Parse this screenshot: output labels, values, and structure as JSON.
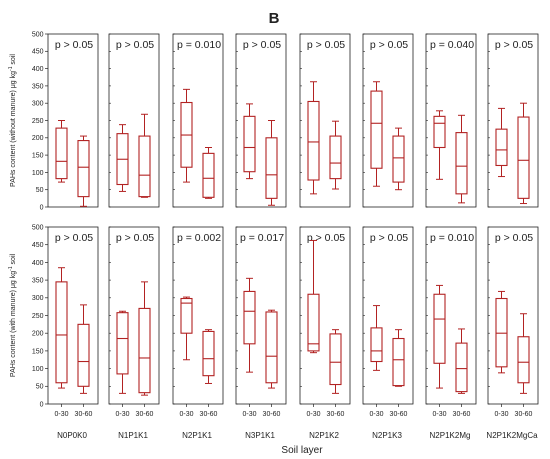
{
  "chart_data": {
    "type": "boxplot",
    "figure_label": "B",
    "xlabel": "Soil layer",
    "categories": [
      "0-30",
      "30-60"
    ],
    "treatments": [
      "N0P0K0",
      "N1P1K1",
      "N2P1K1",
      "N3P1K1",
      "N2P1K2",
      "N2P1K3",
      "N2P1K2Mg",
      "N2P1K2MgCa"
    ],
    "ylim": [
      0,
      500
    ],
    "yticks": [
      "0",
      "50",
      "100",
      "150",
      "200",
      "250",
      "300",
      "350",
      "400",
      "450",
      "500"
    ],
    "box_color": "#b22222",
    "rows": [
      {
        "ylabel_main": "PAHs content (without manure)",
        "ylabel_unit_base": "μg kg",
        "ylabel_unit_exp": "-1",
        "ylabel_unit_end": " soil",
        "panels": [
          {
            "treatment": "N0P0K0",
            "p_value": "p > 0.05",
            "boxes": [
              {
                "min": 72,
                "q1": 82,
                "median": 132,
                "q3": 228,
                "max": 250
              },
              {
                "min": 2,
                "q1": 30,
                "median": 115,
                "q3": 192,
                "max": 205
              }
            ]
          },
          {
            "treatment": "N1P1K1",
            "p_value": "p > 0.05",
            "boxes": [
              {
                "min": 45,
                "q1": 65,
                "median": 138,
                "q3": 212,
                "max": 238
              },
              {
                "min": 28,
                "q1": 30,
                "median": 92,
                "q3": 205,
                "max": 268
              }
            ]
          },
          {
            "treatment": "N2P1K1",
            "p_value": "p = 0.010",
            "boxes": [
              {
                "min": 72,
                "q1": 115,
                "median": 208,
                "q3": 302,
                "max": 340
              },
              {
                "min": 25,
                "q1": 28,
                "median": 83,
                "q3": 155,
                "max": 172
              }
            ]
          },
          {
            "treatment": "N3P1K1",
            "p_value": "p > 0.05",
            "boxes": [
              {
                "min": 82,
                "q1": 102,
                "median": 172,
                "q3": 262,
                "max": 298
              },
              {
                "min": 5,
                "q1": 25,
                "median": 93,
                "q3": 200,
                "max": 250
              }
            ]
          },
          {
            "treatment": "N2P1K2",
            "p_value": "p > 0.05",
            "boxes": [
              {
                "min": 38,
                "q1": 78,
                "median": 188,
                "q3": 305,
                "max": 362
              },
              {
                "min": 52,
                "q1": 82,
                "median": 127,
                "q3": 205,
                "max": 248
              }
            ]
          },
          {
            "treatment": "N2P1K3",
            "p_value": "p > 0.05",
            "boxes": [
              {
                "min": 60,
                "q1": 112,
                "median": 242,
                "q3": 335,
                "max": 362
              },
              {
                "min": 50,
                "q1": 72,
                "median": 142,
                "q3": 205,
                "max": 228
              }
            ]
          },
          {
            "treatment": "N2P1K2Mg",
            "p_value": "p = 0.040",
            "boxes": [
              {
                "min": 80,
                "q1": 172,
                "median": 242,
                "q3": 262,
                "max": 278
              },
              {
                "min": 12,
                "q1": 38,
                "median": 118,
                "q3": 215,
                "max": 265
              }
            ]
          },
          {
            "treatment": "N2P1K2MgCa",
            "p_value": "p > 0.05",
            "boxes": [
              {
                "min": 88,
                "q1": 120,
                "median": 165,
                "q3": 225,
                "max": 285
              },
              {
                "min": 10,
                "q1": 25,
                "median": 135,
                "q3": 260,
                "max": 300
              }
            ]
          }
        ]
      },
      {
        "ylabel_main": "PAHs content (with manure)",
        "ylabel_unit_base": "μg kg",
        "ylabel_unit_exp": "-1",
        "ylabel_unit_end": " soil",
        "panels": [
          {
            "treatment": "N0P0K0",
            "p_value": "p > 0.05",
            "boxes": [
              {
                "min": 45,
                "q1": 60,
                "median": 195,
                "q3": 345,
                "max": 385
              },
              {
                "min": 30,
                "q1": 50,
                "median": 120,
                "q3": 225,
                "max": 280
              }
            ]
          },
          {
            "treatment": "N1P1K1",
            "p_value": "p > 0.05",
            "boxes": [
              {
                "min": 30,
                "q1": 85,
                "median": 185,
                "q3": 258,
                "max": 262
              },
              {
                "min": 25,
                "q1": 32,
                "median": 130,
                "q3": 270,
                "max": 345
              }
            ]
          },
          {
            "treatment": "N2P1K1",
            "p_value": "p = 0.002",
            "boxes": [
              {
                "min": 125,
                "q1": 200,
                "median": 285,
                "q3": 298,
                "max": 302
              },
              {
                "min": 58,
                "q1": 80,
                "median": 128,
                "q3": 205,
                "max": 210
              }
            ]
          },
          {
            "treatment": "N3P1K1",
            "p_value": "p = 0.017",
            "boxes": [
              {
                "min": 90,
                "q1": 170,
                "median": 262,
                "q3": 318,
                "max": 355
              },
              {
                "min": 45,
                "q1": 60,
                "median": 135,
                "q3": 260,
                "max": 265
              }
            ]
          },
          {
            "treatment": "N2P1K2",
            "p_value": "p > 0.05",
            "boxes": [
              {
                "min": 145,
                "q1": 150,
                "median": 170,
                "q3": 310,
                "max": 462
              },
              {
                "min": 30,
                "q1": 55,
                "median": 118,
                "q3": 198,
                "max": 210
              }
            ]
          },
          {
            "treatment": "N2P1K3",
            "p_value": "p > 0.05",
            "boxes": [
              {
                "min": 95,
                "q1": 120,
                "median": 150,
                "q3": 215,
                "max": 278
              },
              {
                "min": 50,
                "q1": 52,
                "median": 125,
                "q3": 185,
                "max": 210
              }
            ]
          },
          {
            "treatment": "N2P1K2Mg",
            "p_value": "p = 0.010",
            "boxes": [
              {
                "min": 45,
                "q1": 115,
                "median": 240,
                "q3": 310,
                "max": 335
              },
              {
                "min": 30,
                "q1": 35,
                "median": 100,
                "q3": 172,
                "max": 212
              }
            ]
          },
          {
            "treatment": "N2P1K2MgCa",
            "p_value": "p > 0.05",
            "boxes": [
              {
                "min": 88,
                "q1": 105,
                "median": 200,
                "q3": 298,
                "max": 318
              },
              {
                "min": 30,
                "q1": 60,
                "median": 118,
                "q3": 190,
                "max": 255
              }
            ]
          }
        ]
      }
    ]
  }
}
